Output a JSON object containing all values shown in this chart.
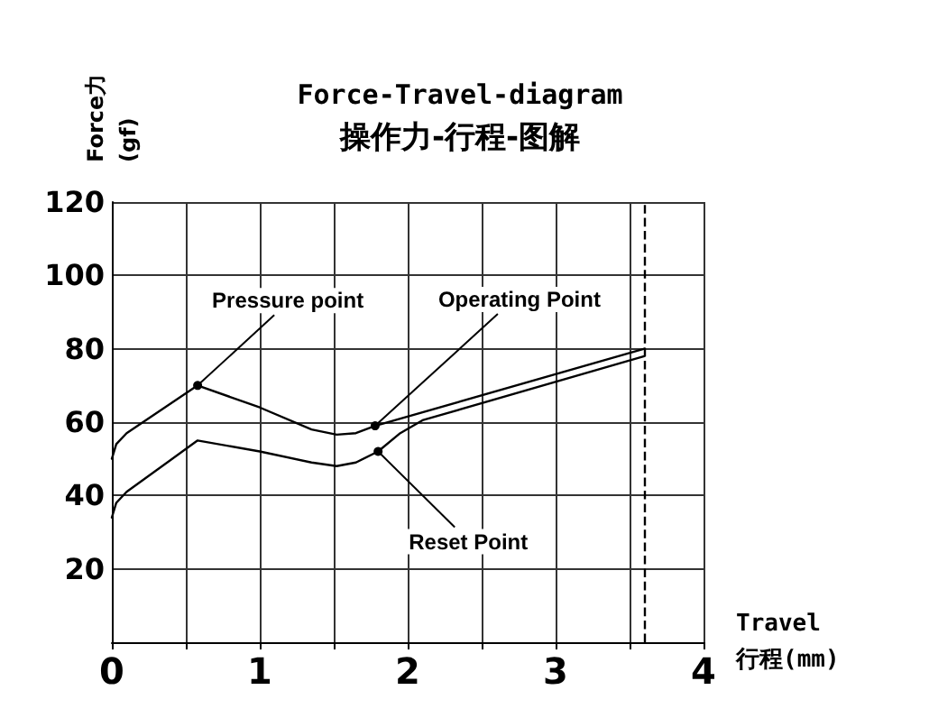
{
  "chart_data": {
    "type": "line",
    "title": "Force-Travel-diagram",
    "subtitle": "操作力-行程-图解",
    "xlabel": "Travel\n行程(mm)",
    "ylabel": "Force力\n(gf)",
    "series": [
      {
        "color": "#000000",
        "x": [
          0,
          0.03,
          0.1,
          0.58,
          1.0,
          1.35,
          1.52,
          1.65,
          1.78,
          3.6
        ],
        "values": [
          50,
          54,
          57,
          70,
          64,
          58,
          56.6,
          57,
          59,
          80
        ]
      },
      {
        "color": "#000000",
        "x": [
          0,
          0.03,
          0.1,
          0.58,
          1.0,
          1.35,
          1.52,
          1.65,
          1.8,
          1.95,
          2.1,
          3.6
        ],
        "values": [
          34,
          38,
          41,
          55,
          52,
          49,
          48,
          49,
          52,
          57,
          60.5,
          78
        ]
      }
    ],
    "xlim": [
      0,
      4
    ],
    "xticks": [
      0,
      {
        "value": 0.5,
        "label": null
      },
      1,
      {
        "value": 1.5,
        "label": null
      },
      2,
      {
        "value": 2.5,
        "label": null
      },
      3,
      {
        "value": 3.5,
        "label": null
      },
      4
    ],
    "ylim": [
      0,
      120
    ],
    "yticks": [
      20,
      40,
      60,
      80,
      100,
      120
    ],
    "ref_lines": [
      {
        "axis": "x",
        "value": 3.6,
        "line_style": "dashed",
        "color": "#000000"
      }
    ],
    "annotations": [
      {
        "text": "Pressure point",
        "x": 0.58,
        "y": 70
      },
      {
        "text": "Operating Point",
        "x": 1.78,
        "y": 59
      },
      {
        "text": "Reset Point",
        "x": 1.8,
        "y": 52
      }
    ],
    "grid": true,
    "marker": "none",
    "line_style": "solid"
  }
}
